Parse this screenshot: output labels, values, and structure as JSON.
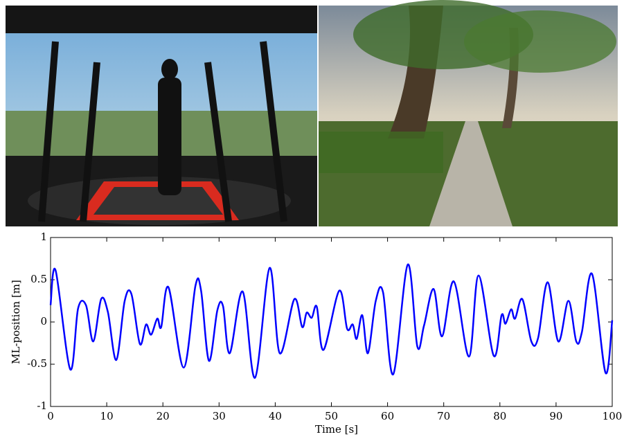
{
  "chart_data": {
    "type": "line",
    "x_label": "Time [s]",
    "y_label": "ML-position [m]",
    "xlim": [
      0,
      100
    ],
    "ylim": [
      -1,
      1
    ],
    "xticks": [
      0,
      10,
      20,
      30,
      40,
      50,
      60,
      70,
      80,
      90,
      100
    ],
    "yticks": [
      -1,
      -0.5,
      0,
      0.5,
      1
    ],
    "series": [
      {
        "color": "#0000ff",
        "x": [
          0,
          0.9,
          3.5,
          4.9,
          6.3,
          7.6,
          9.0,
          10.2,
          11.7,
          13.2,
          14.4,
          15.9,
          17.0,
          17.9,
          19.0,
          19.7,
          21.0,
          23.7,
          25.8,
          26.8,
          28.2,
          29.7,
          30.7,
          31.9,
          34.2,
          36.4,
          39.0,
          40.8,
          43.4,
          44.8,
          45.6,
          46.5,
          47.4,
          48.6,
          51.4,
          52.8,
          53.8,
          54.5,
          55.5,
          56.5,
          57.9,
          59.2,
          61.0,
          63.6,
          65.3,
          66.5,
          68.2,
          69.7,
          71.8,
          74.5,
          76.2,
          78.9,
          80.3,
          81.0,
          82.0,
          82.7,
          84.0,
          85.6,
          86.8,
          88.5,
          90.4,
          92.2,
          93.6,
          94.6,
          96.4,
          98.8,
          100
        ],
        "values": [
          0.2,
          0.61,
          -0.56,
          0.16,
          0.2,
          -0.23,
          0.27,
          0.12,
          -0.45,
          0.25,
          0.33,
          -0.26,
          -0.03,
          -0.15,
          0.04,
          -0.06,
          0.41,
          -0.54,
          0.43,
          0.37,
          -0.46,
          0.14,
          0.19,
          -0.37,
          0.36,
          -0.66,
          0.64,
          -0.37,
          0.27,
          -0.06,
          0.11,
          0.05,
          0.18,
          -0.33,
          0.37,
          -0.08,
          -0.03,
          -0.2,
          0.08,
          -0.37,
          0.25,
          0.35,
          -0.62,
          0.68,
          -0.29,
          -0.04,
          0.39,
          -0.17,
          0.48,
          -0.41,
          0.55,
          -0.4,
          0.08,
          -0.02,
          0.15,
          0.04,
          0.27,
          -0.23,
          -0.19,
          0.47,
          -0.23,
          0.25,
          -0.23,
          -0.12,
          0.57,
          -0.6,
          0.02
        ]
      }
    ]
  }
}
